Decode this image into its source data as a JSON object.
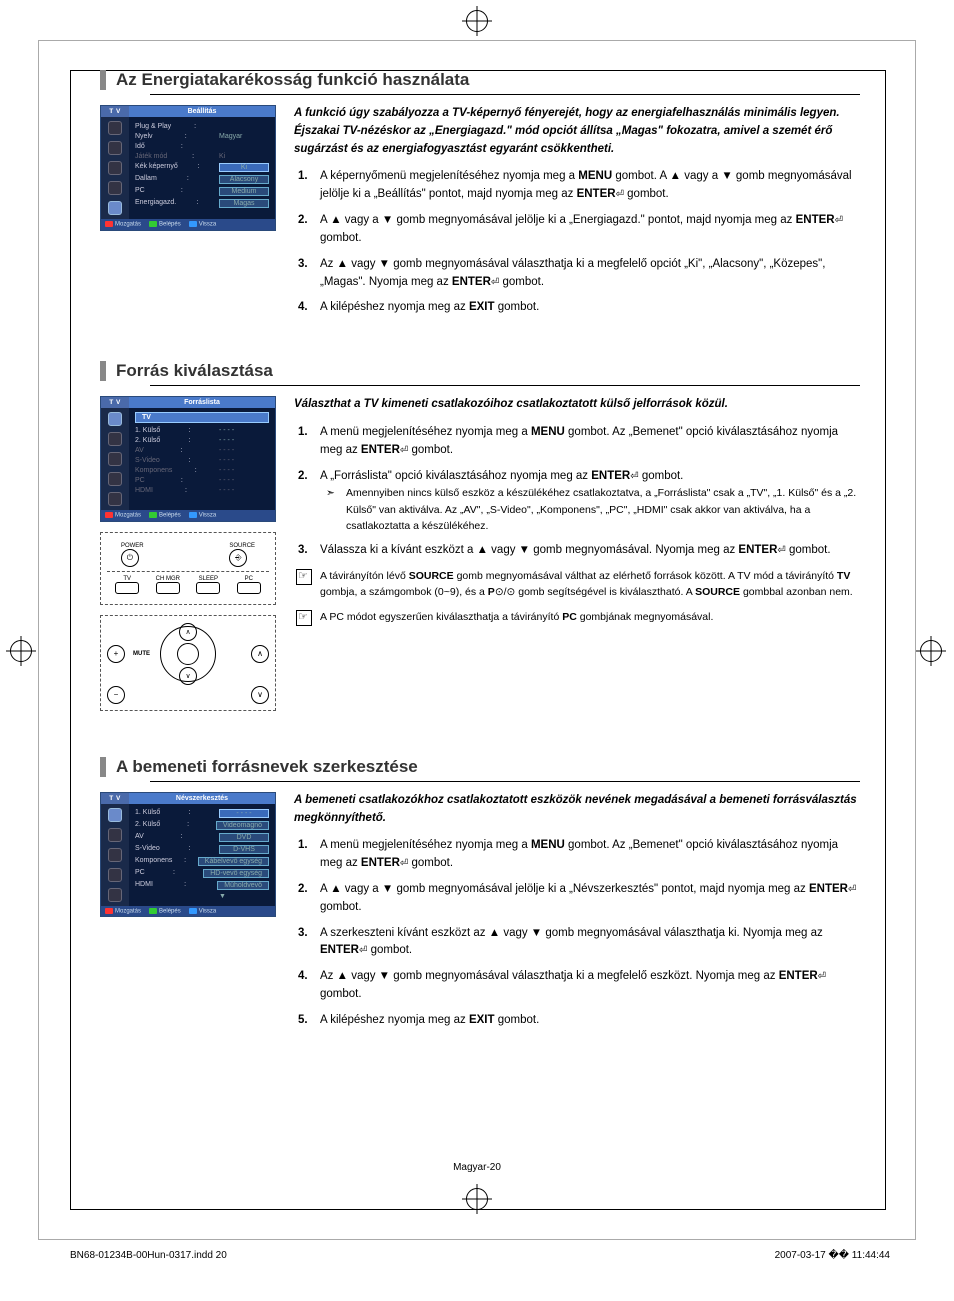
{
  "reg_marks": true,
  "section1": {
    "title": "Az Energiatakarékosság funkció használata",
    "osd": {
      "tv": "T V",
      "header": "Beállítás",
      "rows": [
        {
          "label": "Plug & Play",
          "val": "",
          "cls": ""
        },
        {
          "label": "Nyelv",
          "val": "Magyar",
          "cls": ""
        },
        {
          "label": "Idő",
          "val": "",
          "cls": ""
        },
        {
          "label": "Játék mód",
          "val": "Ki",
          "cls": "dim"
        },
        {
          "label": "Kék képernyő",
          "val": "Ki",
          "cls": "hl"
        },
        {
          "label": "Dallam",
          "val": "Alacsony",
          "cls": "hl2"
        },
        {
          "label": "PC",
          "val": "Medium",
          "cls": "hl2"
        },
        {
          "label": "Energiagazd.",
          "val": "Magas",
          "cls": "hl2"
        }
      ],
      "footer": [
        "Mozgatás",
        "Belépés",
        "Vissza"
      ]
    },
    "intro": "A funkció úgy szabályozza a TV-képernyő fényerejét, hogy az energiafelhasználás minimális legyen. Éjszakai TV-nézéskor az „Energiagazd.\" mód opciót állítsa „Magas\" fokozatra, amivel a szemét érő sugárzást és az energiafogyasztást egyaránt csökkentheti.",
    "steps": [
      "A képernyőmenü megjelenítéséhez nyomja meg a <b>MENU</b> gombot. A ▲ vagy a ▼ gomb megnyomásával jelölje ki a „Beállítás\" pontot, majd nyomja meg az <b>ENTER</b><span class='enter-glyph'></span> gombot.",
      "A ▲ vagy a ▼ gomb megnyomásával jelölje ki a „Energiagazd.\" pontot, majd nyomja meg az <b>ENTER</b><span class='enter-glyph'></span> gombot.",
      "Az ▲ vagy ▼ gomb megnyomásával választhatja ki a megfelelő opciót „Ki\", „Alacsony\", „Közepes\", „Magas\". Nyomja meg az <b>ENTER</b><span class='enter-glyph'></span> gombot.",
      "A kilépéshez nyomja meg az <b>EXIT</b> gombot."
    ]
  },
  "section2": {
    "title": "Forrás kiválasztása",
    "osd": {
      "tv": "T V",
      "header": "Forráslista",
      "selected": "TV",
      "rows": [
        {
          "label": "1. Külső",
          "val": "- - - -",
          "cls": ""
        },
        {
          "label": "2. Külső",
          "val": "- - - -",
          "cls": ""
        },
        {
          "label": "AV",
          "val": "- - - -",
          "cls": "dim"
        },
        {
          "label": "S-Video",
          "val": "- - - -",
          "cls": "dim"
        },
        {
          "label": "Komponens",
          "val": "- - - -",
          "cls": "dim"
        },
        {
          "label": "PC",
          "val": "- - - -",
          "cls": "dim"
        },
        {
          "label": "HDMI",
          "val": "- - - -",
          "cls": "dim"
        }
      ],
      "footer": [
        "Mozgatás",
        "Belépés",
        "Vissza"
      ]
    },
    "remote_labels": {
      "power": "POWER",
      "source": "SOURCE",
      "tv": "TV",
      "chmgr": "CH MGR",
      "sleep": "SLEEP",
      "pc": "PC",
      "mute": "MUTE"
    },
    "intro": "Választhat a TV kimeneti csatlakozóihoz csatlakoztatott külső jelforrások közül.",
    "steps": [
      "A menü megjelenítéséhez nyomja meg a <b>MENU</b> gombot. Az „Bemenet\" opció kiválasztásához nyomja meg az <b>ENTER</b><span class='enter-glyph'></span> gombot.",
      "A „Forráslista\" opció kiválasztásához nyomja meg az <b>ENTER</b><span class='enter-glyph'></span> gombot.",
      "Válassza ki a kívánt eszközt a ▲ vagy ▼ gomb megnyomásával. Nyomja meg az <b>ENTER</b><span class='enter-glyph'></span> gombot."
    ],
    "note_after_2": "Amennyiben nincs külső eszköz a készülékéhez csatlakoztatva, a „Forráslista\" csak a „TV\", „1. Külső\" és a „2. Külső\" van aktiválva. Az „AV\", „S-Video\", „Komponens\", „PC\", „HDMI\" csak akkor van aktiválva, ha a csatlakoztatta a készülékéhez.",
    "box_notes": [
      "A távirányítón lévő <b>SOURCE</b> gomb megnyomásával válthat az elérhető források között. A TV mód a távirányító <b>TV</b> gombja, a számgombok (0~9), és a <b>P</b>⊙/⊙ gomb segítségével is kiválasztható. A <b>SOURCE</b> gombbal azonban nem.",
      "A PC módot egyszerűen kiválaszthatja a távirányító <b>PC</b> gombjának megnyomásával."
    ]
  },
  "section3": {
    "title": "A bemeneti forrásnevek szerkesztése",
    "osd": {
      "tv": "T V",
      "header": "Névszerkesztés",
      "rows": [
        {
          "label": "1. Külső",
          "val": "- - - -",
          "cls": "hl"
        },
        {
          "label": "2. Külső",
          "val": "Videomagnó",
          "cls": "hl2"
        },
        {
          "label": "AV",
          "val": "DVD",
          "cls": "hl2"
        },
        {
          "label": "S-Video",
          "val": "D-VHS",
          "cls": "hl2"
        },
        {
          "label": "Komponens",
          "val": "Kábelvevő egység",
          "cls": "hl2"
        },
        {
          "label": "PC",
          "val": "HD-vevő egység",
          "cls": "hl2"
        },
        {
          "label": "HDMI",
          "val": "Műholdvevő",
          "cls": "hl2"
        },
        {
          "label": "",
          "val": "▼",
          "cls": ""
        }
      ],
      "footer": [
        "Mozgatás",
        "Belépés",
        "Vissza"
      ]
    },
    "intro": "A bemeneti csatlakozókhoz csatlakoztatott eszközök nevének megadásával a bemeneti forrásválasztás megkönnyíthető.",
    "steps": [
      "A menü megjelenítéséhez nyomja meg a <b>MENU</b> gombot. Az „Bemenet\" opció kiválasztásához nyomja meg az <b>ENTER</b><span class='enter-glyph'></span> gombot.",
      "A ▲ vagy a ▼ gomb megnyomásával jelölje ki a „Névszerkesztés\" pontot, majd nyomja meg az <b>ENTER</b><span class='enter-glyph'></span> gombot.",
      "A szerkeszteni kívánt eszközt az ▲ vagy ▼ gomb megnyomásával választhatja ki. Nyomja meg az <b>ENTER</b><span class='enter-glyph'></span> gombot.",
      "Az ▲ vagy ▼ gomb megnyomásával választhatja ki a megfelelő eszközt. Nyomja meg az <b>ENTER</b><span class='enter-glyph'></span> gombot.",
      "A kilépéshez nyomja meg az <b>EXIT</b> gombot."
    ]
  },
  "page_number": "Magyar-20",
  "print_left": "BN68-01234B-00Hun-0317.indd   20",
  "print_right": "2007-03-17   �� 11:44:44"
}
